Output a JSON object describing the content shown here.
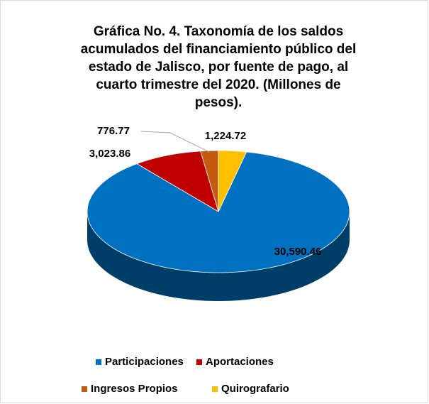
{
  "chart_data": {
    "type": "pie",
    "title": [
      "Gráfica No. 4. Taxonomía de los saldos",
      "acumulados del financiamiento público del",
      "estado de Jalisco, por fuente de pago, al",
      "cuarto trimestre del 2020. (Millones de",
      "pesos)."
    ],
    "categories": [
      "Participaciones",
      "Aportaciones",
      "Ingresos Propios",
      "Quirografario"
    ],
    "values": [
      30590.46,
      3023.86,
      776.77,
      1224.72
    ],
    "value_labels": [
      "30,590.46",
      "3,023.86",
      "776.77",
      "1,224.72"
    ],
    "colors": [
      "#0070c0",
      "#c00000",
      "#c55a11",
      "#ffc000"
    ],
    "legend": "bottom"
  }
}
